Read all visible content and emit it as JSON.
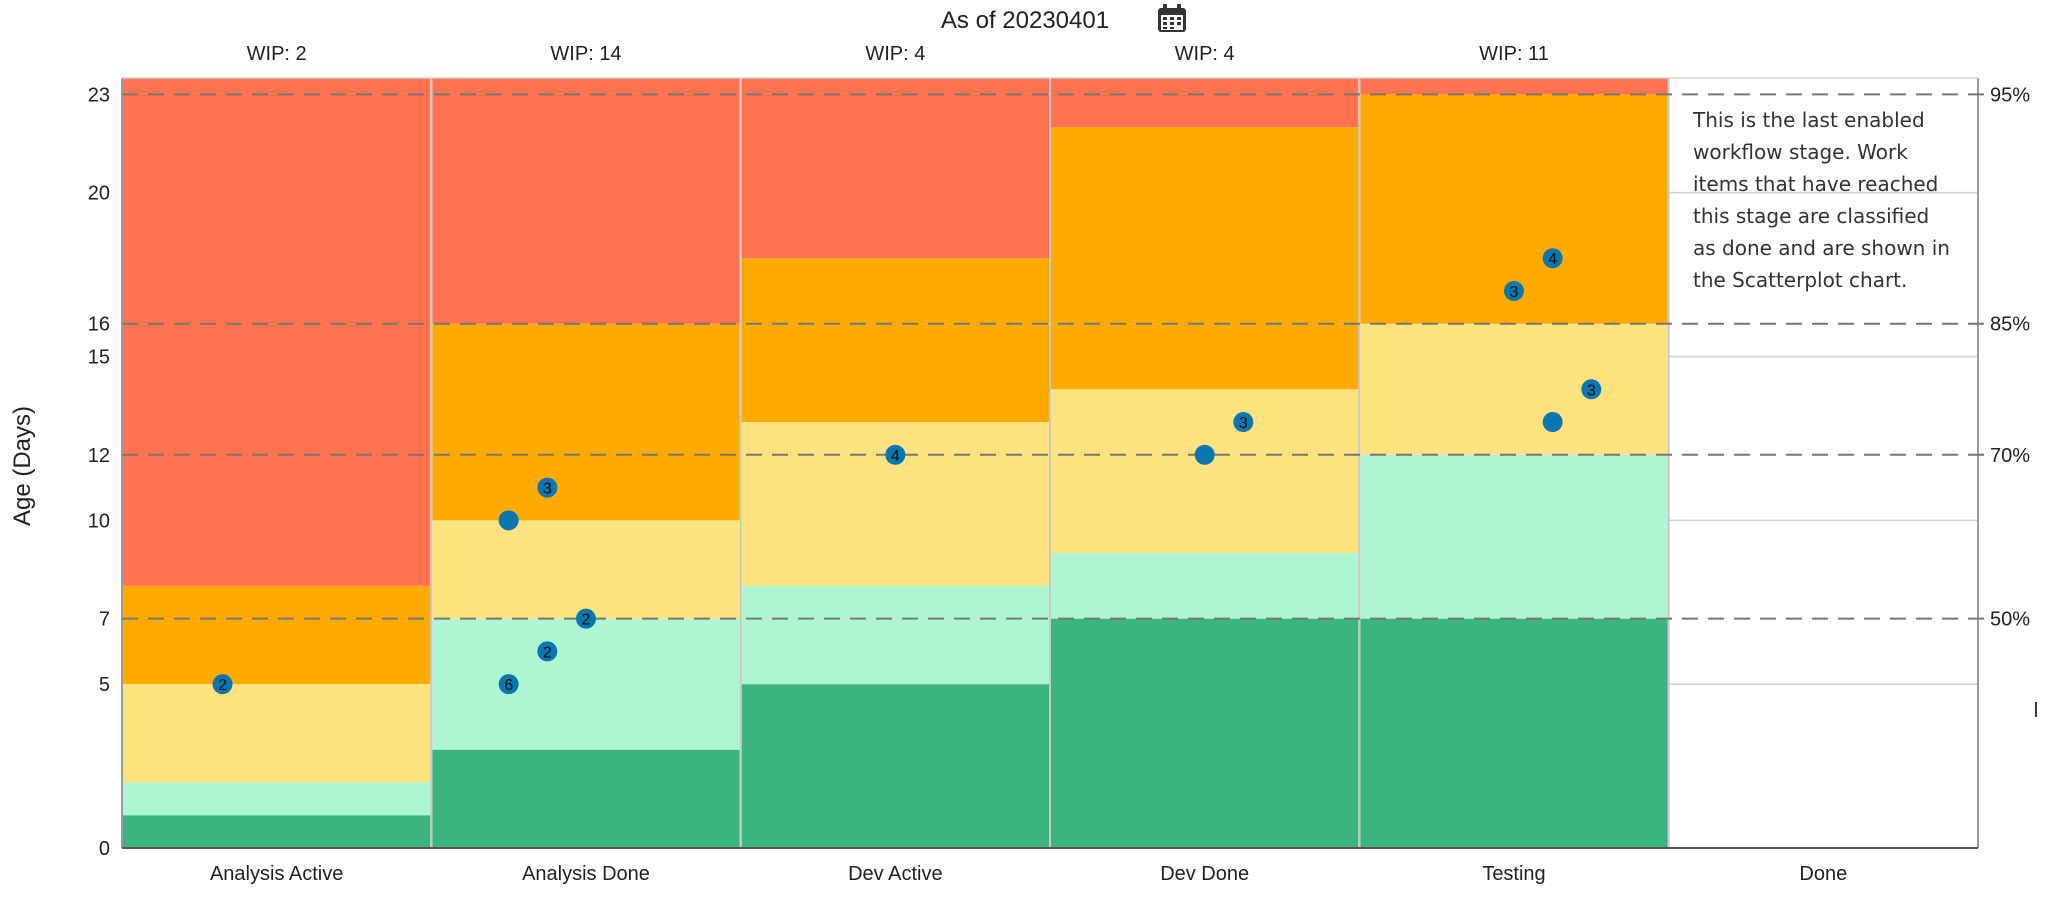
{
  "header": {
    "title": "As of 20230401",
    "calendar_icon": "calendar-icon"
  },
  "done_note": "This is the last enabled workflow stage. Work items that have reached this stage are classified as done and are shown in the Scatterplot chart.",
  "chart_data": {
    "type": "bar",
    "subtype": "aging-wip",
    "title": "",
    "xlabel": "",
    "ylabel": "Age (Days)",
    "ylim": [
      0,
      23.5
    ],
    "y_ticks": [
      0,
      5,
      7,
      10,
      12,
      15,
      16,
      20,
      23
    ],
    "categories": [
      "Analysis Active",
      "Analysis Done",
      "Dev Active",
      "Dev Done",
      "Testing",
      "Done"
    ],
    "wip": [
      "WIP: 2",
      "WIP: 14",
      "WIP: 4",
      "WIP: 4",
      "WIP: 11",
      ""
    ],
    "percentile_lines": [
      {
        "label": "50%",
        "value": 7
      },
      {
        "label": "70%",
        "value": 12
      },
      {
        "label": "85%",
        "value": 16
      },
      {
        "label": "95%",
        "value": 23
      }
    ],
    "band_colors": [
      "#3bb47e",
      "#aef5d1",
      "#fde27f",
      "#ffaa00",
      "#ff7351"
    ],
    "bands": [
      [
        1,
        2,
        5,
        8,
        23.5
      ],
      [
        3,
        7,
        10,
        16,
        23.5
      ],
      [
        5,
        8,
        13,
        18,
        23.5
      ],
      [
        7,
        9,
        14,
        22,
        23.5
      ],
      [
        7,
        12,
        16,
        23,
        23.5
      ]
    ],
    "points": [
      {
        "stage": 0,
        "offset": -0.35,
        "age": 5,
        "label": "2"
      },
      {
        "stage": 1,
        "offset": -0.5,
        "age": 5,
        "label": "6"
      },
      {
        "stage": 1,
        "offset": -0.25,
        "age": 6,
        "label": "2"
      },
      {
        "stage": 1,
        "offset": 0.0,
        "age": 7,
        "label": "2"
      },
      {
        "stage": 1,
        "offset": -0.5,
        "age": 10,
        "label": ""
      },
      {
        "stage": 1,
        "offset": -0.25,
        "age": 11,
        "label": "3"
      },
      {
        "stage": 2,
        "offset": 0.0,
        "age": 12,
        "label": "4"
      },
      {
        "stage": 3,
        "offset": 0.0,
        "age": 12,
        "label": ""
      },
      {
        "stage": 3,
        "offset": 0.25,
        "age": 13,
        "label": "3"
      },
      {
        "stage": 4,
        "offset": 0.25,
        "age": 13,
        "label": ""
      },
      {
        "stage": 4,
        "offset": 0.5,
        "age": 14,
        "label": "3"
      },
      {
        "stage": 4,
        "offset": 0.0,
        "age": 17,
        "label": "3"
      },
      {
        "stage": 4,
        "offset": 0.25,
        "age": 18,
        "label": "4"
      }
    ],
    "grid": true,
    "legend": "none"
  },
  "cursor_glyph": "I"
}
